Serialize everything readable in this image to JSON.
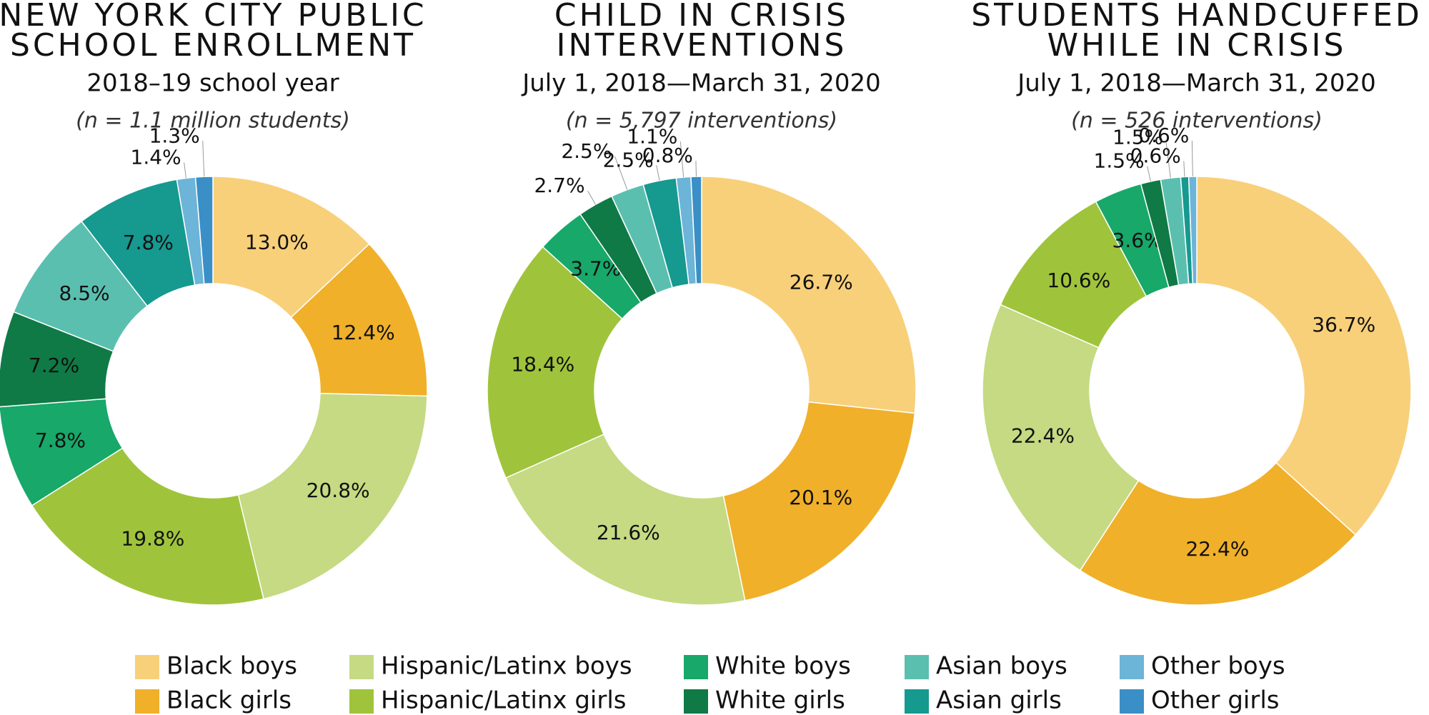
{
  "chart_data": [
    {
      "type": "donut",
      "title": [
        "NEW YORK CITY PUBLIC",
        "SCHOOL ENROLLMENT"
      ],
      "subtitle": "2018–19 school year",
      "note": "(n = 1.1 million students)",
      "categories": [
        "Black boys",
        "Black girls",
        "Hispanic/Latinx boys",
        "Hispanic/Latinx girls",
        "White boys",
        "White girls",
        "Asian boys",
        "Asian girls",
        "Other boys",
        "Other girls"
      ],
      "colors": [
        "#f8d07a",
        "#f0b02a",
        "#c5da82",
        "#9fc43c",
        "#17a86a",
        "#0f7a45",
        "#5bbfb0",
        "#16998f",
        "#6cb4d8",
        "#3a8fc6"
      ],
      "values": [
        13.0,
        12.4,
        20.8,
        19.8,
        7.8,
        7.2,
        8.5,
        7.8,
        1.4,
        1.3
      ],
      "value_labels": [
        "13.0%",
        "12.4%",
        "20.8%",
        "19.8%",
        "7.8%",
        "7.2%",
        "8.5%",
        "7.8%",
        "1.4%",
        "1.3%"
      ]
    },
    {
      "type": "donut",
      "title": [
        "CHILD IN CRISIS",
        "INTERVENTIONS"
      ],
      "subtitle": "July 1, 2018—March 31, 2020",
      "note": "(n = 5,797 interventions)",
      "categories": [
        "Black boys",
        "Black girls",
        "Hispanic/Latinx boys",
        "Hispanic/Latinx girls",
        "White boys",
        "White girls",
        "Asian boys",
        "Asian girls",
        "Other boys",
        "Other girls"
      ],
      "colors": [
        "#f8d07a",
        "#f0b02a",
        "#c5da82",
        "#9fc43c",
        "#17a86a",
        "#0f7a45",
        "#5bbfb0",
        "#16998f",
        "#6cb4d8",
        "#3a8fc6"
      ],
      "values": [
        26.7,
        20.1,
        21.6,
        18.4,
        3.7,
        2.7,
        2.5,
        2.5,
        1.1,
        0.8
      ],
      "value_labels": [
        "26.7%",
        "20.1%",
        "21.6%",
        "18.4%",
        "3.7%",
        "2.7%",
        "2.5%",
        "2.5%",
        "1.1%",
        "0.8%"
      ]
    },
    {
      "type": "donut",
      "title": [
        "STUDENTS HANDCUFFED",
        "WHILE IN CRISIS"
      ],
      "subtitle": "July 1, 2018—March 31, 2020",
      "note": "(n = 526 interventions)",
      "categories": [
        "Black boys",
        "Black girls",
        "Hispanic/Latinx boys",
        "Hispanic/Latinx girls",
        "White boys",
        "White girls",
        "Asian boys",
        "Asian girls",
        "Other boys",
        "Other girls"
      ],
      "colors": [
        "#f8d07a",
        "#f0b02a",
        "#c5da82",
        "#9fc43c",
        "#17a86a",
        "#0f7a45",
        "#5bbfb0",
        "#16998f",
        "#6cb4d8",
        "#3a8fc6"
      ],
      "values": [
        36.7,
        22.4,
        22.4,
        10.6,
        3.6,
        1.5,
        1.5,
        0.6,
        0.6,
        null
      ],
      "value_labels": [
        "36.7%",
        "22.4%",
        "22.4%",
        "10.6%",
        "3.6%",
        "1.5%",
        "1.5%",
        "0.6%",
        "0.6%",
        null
      ]
    }
  ]
}
